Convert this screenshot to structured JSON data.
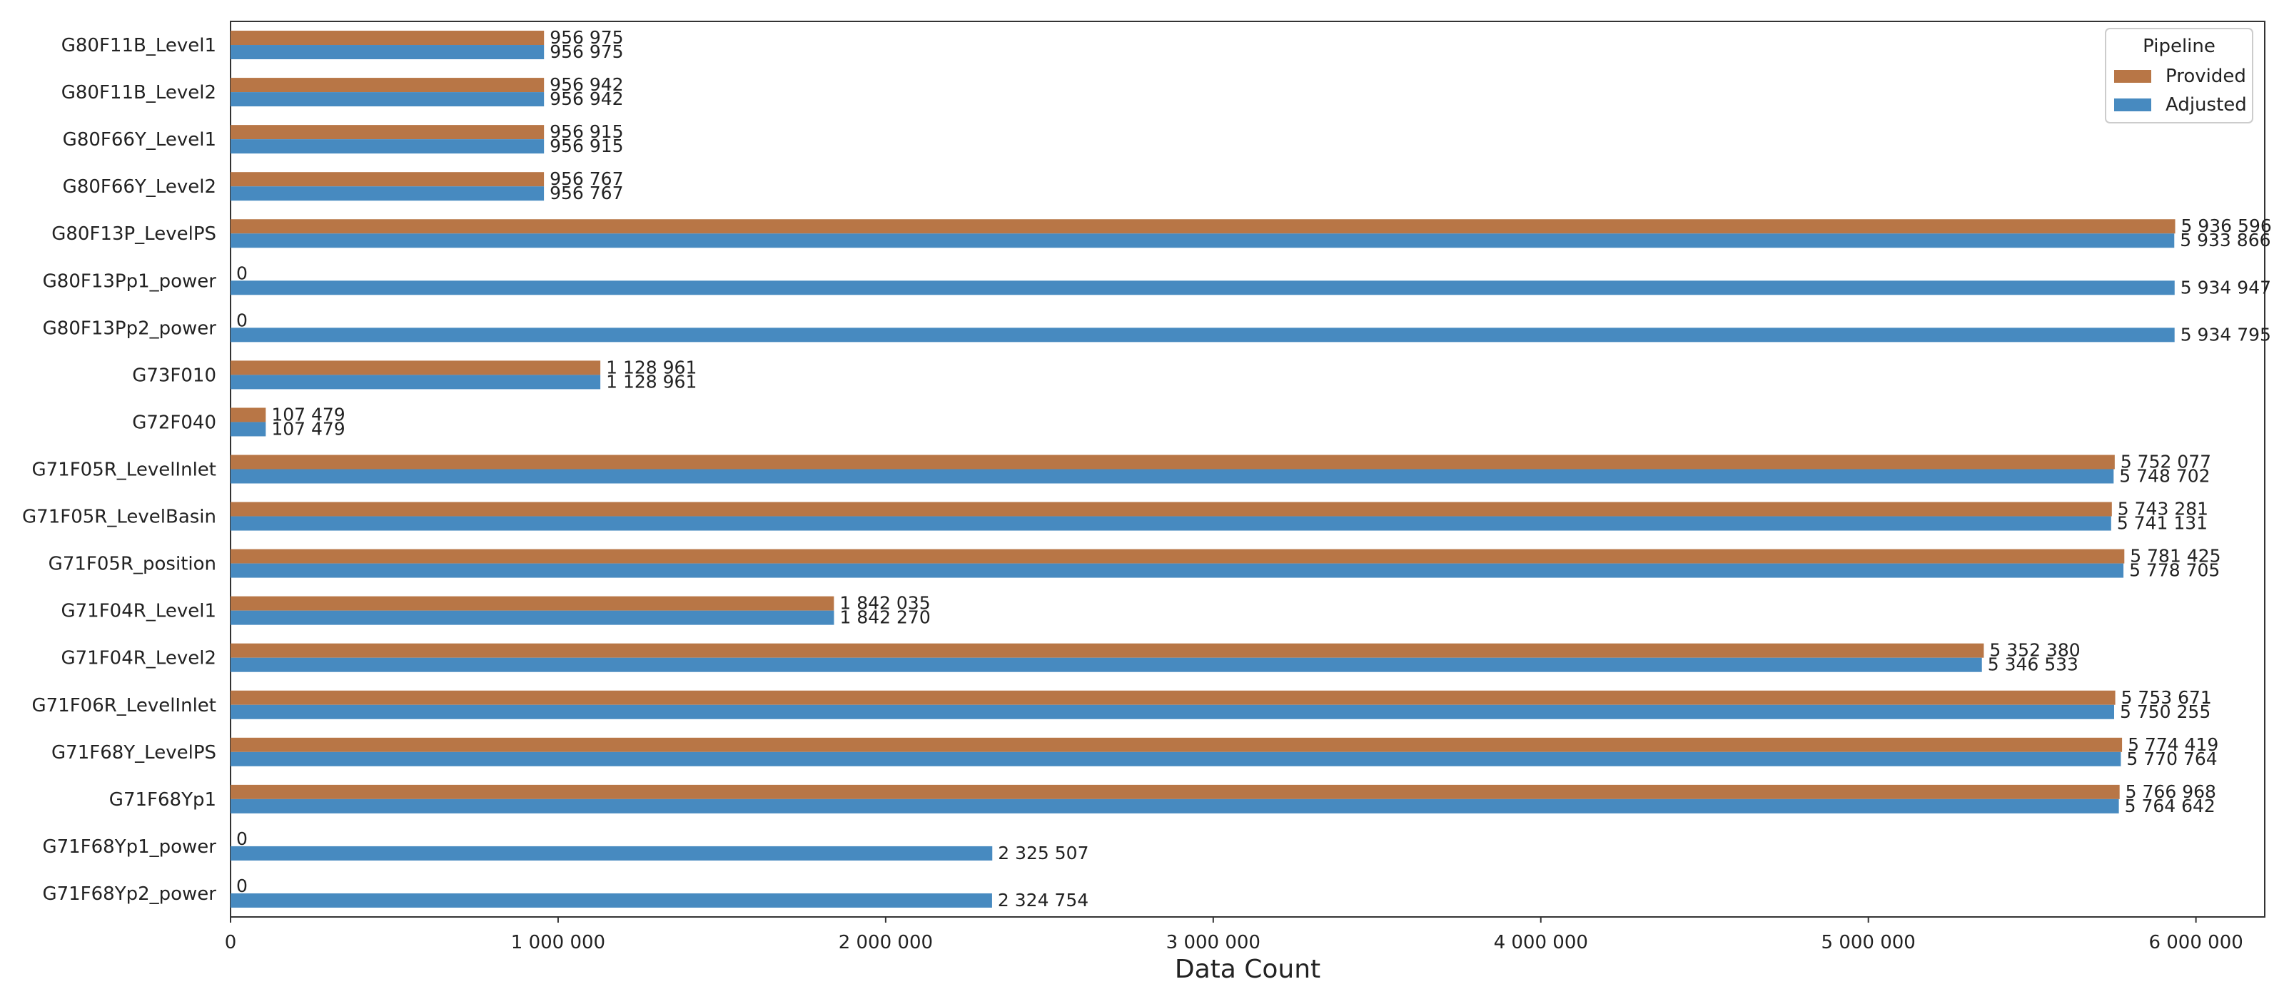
{
  "chart_data": {
    "type": "bar",
    "orientation": "horizontal",
    "xlabel": "Data Count",
    "ylabel": "",
    "xlim": [
      0,
      6210000
    ],
    "xticks": [
      0,
      1000000,
      2000000,
      3000000,
      4000000,
      5000000,
      6000000
    ],
    "xtick_labels": [
      "0",
      "1 000 000",
      "2 000 000",
      "3 000 000",
      "4 000 000",
      "5 000 000",
      "6 000 000"
    ],
    "grid": false,
    "legend": {
      "title": "Pipeline",
      "placement": "top-right"
    },
    "categories": [
      "G80F11B_Level1",
      "G80F11B_Level2",
      "G80F66Y_Level1",
      "G80F66Y_Level2",
      "G80F13P_LevelPS",
      "G80F13Pp1_power",
      "G80F13Pp2_power",
      "G73F010",
      "G72F040",
      "G71F05R_LevelInlet",
      "G71F05R_LevelBasin",
      "G71F05R_position",
      "G71F04R_Level1",
      "G71F04R_Level2",
      "G71F06R_LevelInlet",
      "G71F68Y_LevelPS",
      "G71F68Yp1",
      "G71F68Yp1_power",
      "G71F68Yp2_power"
    ],
    "series": [
      {
        "name": "Provided",
        "color": "#b87646",
        "values": [
          956975,
          956942,
          956915,
          956767,
          5936596,
          0,
          0,
          1128961,
          107479,
          5752077,
          5743281,
          5781425,
          1842035,
          5352380,
          5753671,
          5774419,
          5766968,
          0,
          0
        ],
        "labels": [
          "956 975",
          "956 942",
          "956 915",
          "956 767",
          "5 936 596",
          "0",
          "0",
          "1 128 961",
          "107 479",
          "5 752 077",
          "5 743 281",
          "5 781 425",
          "1 842 035",
          "5 352 380",
          "5 753 671",
          "5 774 419",
          "5 766 968",
          "0",
          "0"
        ]
      },
      {
        "name": "Adjusted",
        "color": "#478ac0",
        "values": [
          956975,
          956942,
          956915,
          956767,
          5933866,
          5934947,
          5934795,
          1128961,
          107479,
          5748702,
          5741131,
          5778705,
          1842270,
          5346533,
          5750255,
          5770764,
          5764642,
          2325507,
          2324754
        ],
        "labels": [
          "956 975",
          "956 942",
          "956 915",
          "956 767",
          "5 933 866",
          "5 934 947",
          "5 934 795",
          "1 128 961",
          "107 479",
          "5 748 702",
          "5 741 131",
          "5 778 705",
          "1 842 270",
          "5 346 533",
          "5 750 255",
          "5 770 764",
          "5 764 642",
          "2 325 507",
          "2 324 754"
        ]
      }
    ]
  }
}
